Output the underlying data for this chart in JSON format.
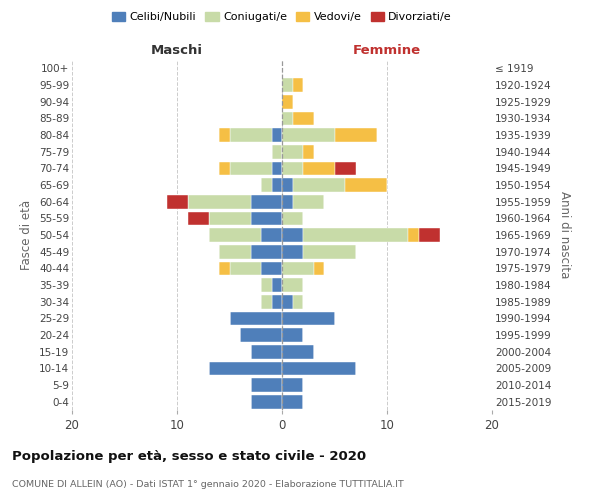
{
  "age_groups": [
    "0-4",
    "5-9",
    "10-14",
    "15-19",
    "20-24",
    "25-29",
    "30-34",
    "35-39",
    "40-44",
    "45-49",
    "50-54",
    "55-59",
    "60-64",
    "65-69",
    "70-74",
    "75-79",
    "80-84",
    "85-89",
    "90-94",
    "95-99",
    "100+"
  ],
  "birth_years": [
    "2015-2019",
    "2010-2014",
    "2005-2009",
    "2000-2004",
    "1995-1999",
    "1990-1994",
    "1985-1989",
    "1980-1984",
    "1975-1979",
    "1970-1974",
    "1965-1969",
    "1960-1964",
    "1955-1959",
    "1950-1954",
    "1945-1949",
    "1940-1944",
    "1935-1939",
    "1930-1934",
    "1925-1929",
    "1920-1924",
    "≤ 1919"
  ],
  "colors": {
    "celibi": "#4f7fba",
    "coniugati": "#c8dba8",
    "vedovi": "#f5bf45",
    "divorziati": "#c0312f"
  },
  "males": {
    "celibi": [
      3,
      3,
      7,
      3,
      4,
      5,
      1,
      1,
      2,
      3,
      2,
      3,
      3,
      1,
      1,
      0,
      1,
      0,
      0,
      0,
      0
    ],
    "coniugati": [
      0,
      0,
      0,
      0,
      0,
      0,
      1,
      1,
      3,
      3,
      5,
      4,
      6,
      1,
      4,
      1,
      4,
      0,
      0,
      0,
      0
    ],
    "vedovi": [
      0,
      0,
      0,
      0,
      0,
      0,
      0,
      0,
      1,
      0,
      0,
      0,
      0,
      0,
      1,
      0,
      1,
      0,
      0,
      0,
      0
    ],
    "divorziati": [
      0,
      0,
      0,
      0,
      0,
      0,
      0,
      0,
      0,
      0,
      0,
      2,
      2,
      0,
      0,
      0,
      0,
      0,
      0,
      0,
      0
    ]
  },
  "females": {
    "celibi": [
      2,
      2,
      7,
      3,
      2,
      5,
      1,
      0,
      0,
      2,
      2,
      0,
      1,
      1,
      0,
      0,
      0,
      0,
      0,
      0,
      0
    ],
    "coniugati": [
      0,
      0,
      0,
      0,
      0,
      0,
      1,
      2,
      3,
      5,
      10,
      2,
      3,
      5,
      2,
      2,
      5,
      1,
      0,
      1,
      0
    ],
    "vedovi": [
      0,
      0,
      0,
      0,
      0,
      0,
      0,
      0,
      1,
      0,
      1,
      0,
      0,
      4,
      3,
      1,
      4,
      2,
      1,
      1,
      0
    ],
    "divorziati": [
      0,
      0,
      0,
      0,
      0,
      0,
      0,
      0,
      0,
      0,
      2,
      0,
      0,
      0,
      2,
      0,
      0,
      0,
      0,
      0,
      0
    ]
  },
  "title": "Popolazione per età, sesso e stato civile - 2020",
  "subtitle": "COMUNE DI ALLEIN (AO) - Dati ISTAT 1° gennaio 2020 - Elaborazione TUTTITALIA.IT",
  "xlabel_left": "Maschi",
  "xlabel_right": "Femmine",
  "ylabel_left": "Fasce di età",
  "ylabel_right": "Anni di nascita",
  "xlim": 20,
  "legend_labels": [
    "Celibi/Nubili",
    "Coniugati/e",
    "Vedovi/e",
    "Divorziati/e"
  ]
}
